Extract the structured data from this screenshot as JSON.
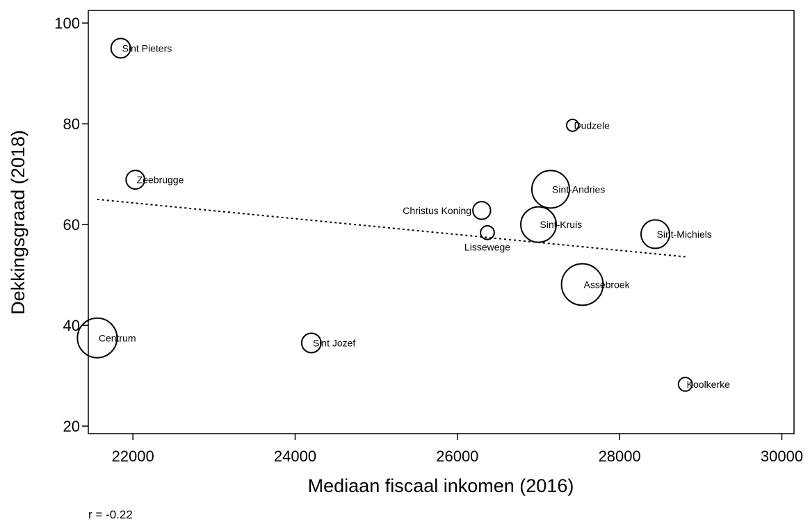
{
  "chart_data": {
    "type": "scatter",
    "title": "",
    "xlabel": "Mediaan fiscaal inkomen (2016)",
    "ylabel": "Dekkingsgraad (2018)",
    "xlim": [
      21450,
      30150
    ],
    "ylim": [
      18.5,
      102.5
    ],
    "xticks": [
      22000,
      24000,
      26000,
      28000,
      30000
    ],
    "yticks": [
      20,
      40,
      60,
      80,
      100
    ],
    "grid": false,
    "marker": "hollow circle, size weighted",
    "points": [
      {
        "label": "Sint Pieters",
        "x": 21850,
        "y": 95.0,
        "size": 2.4,
        "label_pos": "right"
      },
      {
        "label": "Dudzele",
        "x": 27420,
        "y": 79.7,
        "size": 0.9,
        "label_pos": "right"
      },
      {
        "label": "Zeebrugge",
        "x": 22030,
        "y": 68.9,
        "size": 2.2,
        "label_pos": "right"
      },
      {
        "label": "Sint-Andries",
        "x": 27150,
        "y": 67.0,
        "size": 9.0,
        "label_pos": "right"
      },
      {
        "label": "Christus Koning",
        "x": 26300,
        "y": 62.8,
        "size": 2.0,
        "label_pos": "left"
      },
      {
        "label": "Lissewege",
        "x": 26370,
        "y": 58.4,
        "size": 1.2,
        "label_pos": "below"
      },
      {
        "label": "Sint-Kruis",
        "x": 27000,
        "y": 60.0,
        "size": 8.0,
        "label_pos": "right"
      },
      {
        "label": "Sint-Michiels",
        "x": 28440,
        "y": 58.1,
        "size": 5.2,
        "label_pos": "right"
      },
      {
        "label": "Assebroek",
        "x": 27540,
        "y": 48.1,
        "size": 11.0,
        "label_pos": "right"
      },
      {
        "label": "Centrum",
        "x": 21560,
        "y": 37.5,
        "size": 10.0,
        "label_pos": "right"
      },
      {
        "label": "Sint Jozef",
        "x": 24200,
        "y": 36.5,
        "size": 2.4,
        "label_pos": "right"
      },
      {
        "label": "Koolkerke",
        "x": 28810,
        "y": 28.3,
        "size": 1.2,
        "label_pos": "right"
      }
    ],
    "fit_line": {
      "style": "dotted",
      "x": [
        21560,
        28810
      ],
      "y": [
        65.0,
        53.6
      ]
    },
    "annotation": "r = -0.22"
  }
}
